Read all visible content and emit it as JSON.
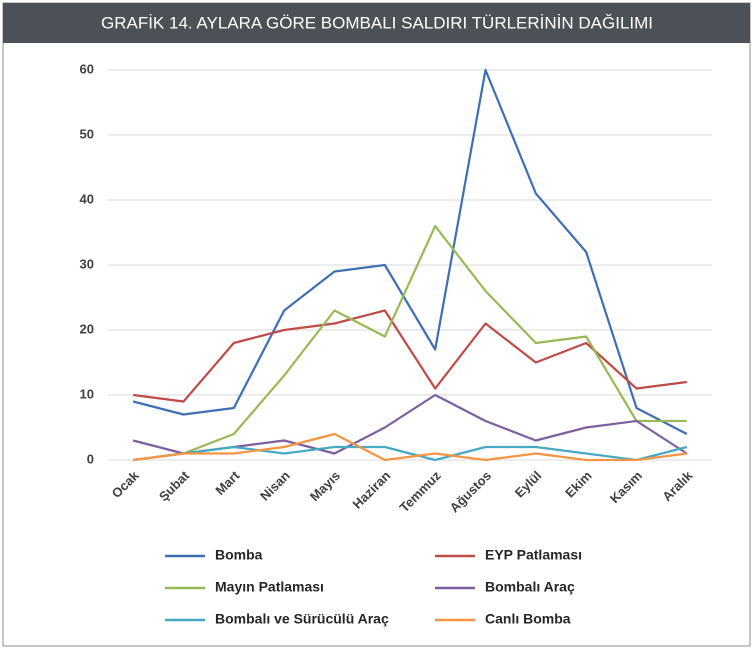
{
  "chart_data": {
    "type": "line",
    "title": "GRAFİK 14. AYLARA GÖRE BOMBALI SALDIRI TÜRLERİNİN DAĞILIMI",
    "categories": [
      "Ocak",
      "Şubat",
      "Mart",
      "Nisan",
      "Mayıs",
      "Haziran",
      "Temmuz",
      "Ağustos",
      "Eylül",
      "Ekim",
      "Kasım",
      "Aralık"
    ],
    "series": [
      {
        "name": "Bomba",
        "color": "#3e6fb3",
        "values": [
          9,
          7,
          8,
          23,
          29,
          30,
          17,
          60,
          41,
          32,
          8,
          4
        ]
      },
      {
        "name": "EYP Patlaması",
        "color": "#be4b48",
        "values": [
          10,
          9,
          18,
          20,
          21,
          23,
          11,
          21,
          15,
          18,
          11,
          12
        ]
      },
      {
        "name": "Mayın Patlaması",
        "color": "#98b954",
        "values": [
          0,
          1,
          4,
          13,
          23,
          19,
          36,
          26,
          18,
          19,
          6,
          6
        ]
      },
      {
        "name": "Bombalı Araç",
        "color": "#7d5fa0",
        "values": [
          3,
          1,
          2,
          3,
          1,
          5,
          10,
          6,
          3,
          5,
          6,
          1
        ]
      },
      {
        "name": "Bombalı ve Sürücülü Araç",
        "color": "#46aac4",
        "values": [
          0,
          1,
          2,
          1,
          2,
          2,
          0,
          2,
          2,
          1,
          0,
          2
        ]
      },
      {
        "name": "Canlı Bomba",
        "color": "#f59443",
        "values": [
          0,
          1,
          1,
          2,
          4,
          0,
          1,
          0,
          1,
          0,
          0,
          1
        ]
      }
    ],
    "ylim": [
      0,
      60
    ],
    "yticks": [
      0,
      10,
      20,
      30,
      40,
      50,
      60
    ],
    "grid": true
  }
}
